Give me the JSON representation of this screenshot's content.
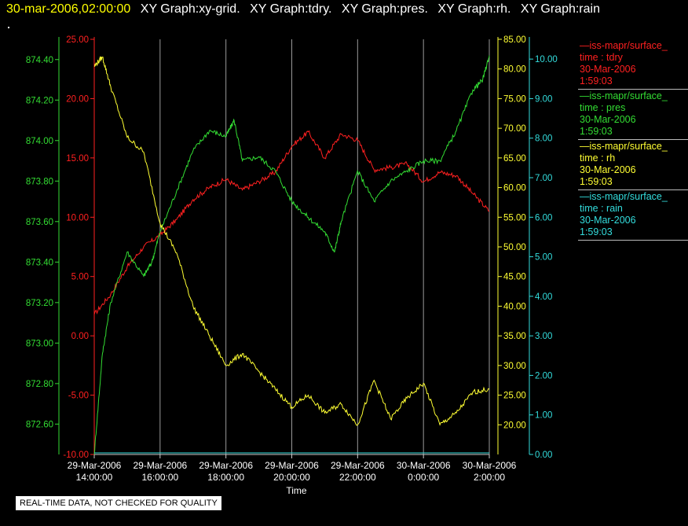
{
  "header": {
    "timestamp": "30-mar-2006,02:00:00",
    "titles": [
      "XY Graph:xy-grid.",
      "XY Graph:tdry.",
      "XY Graph:pres.",
      "XY Graph:rh.",
      "XY Graph:rain"
    ],
    "dot": "."
  },
  "legend": [
    {
      "name": "—iss-mapr/surface_",
      "var": "time : tdry",
      "date": "30-Mar-2006",
      "time": "1:59:03",
      "color": "#ff2020"
    },
    {
      "name": "—iss-mapr/surface_",
      "var": "time : pres",
      "date": "30-Mar-2006",
      "time": "1:59:03",
      "color": "#33dd33"
    },
    {
      "name": "—iss-mapr/surface_",
      "var": "time : rh",
      "date": "30-Mar-2006",
      "time": "1:59:03",
      "color": "#ffff33"
    },
    {
      "name": "—iss-mapr/surface_",
      "var": "time : rain",
      "date": "30-Mar-2006",
      "time": "1:59:03",
      "color": "#33dddd"
    }
  ],
  "footer_note": "REAL-TIME DATA, NOT CHECKED FOR QUALITY",
  "chart_data": {
    "type": "line",
    "xlabel": "Time",
    "x_ticks": [
      {
        "date": "29-Mar-2006",
        "time": "14:00:00"
      },
      {
        "date": "29-Mar-2006",
        "time": "16:00:00"
      },
      {
        "date": "29-Mar-2006",
        "time": "18:00:00"
      },
      {
        "date": "29-Mar-2006",
        "time": "20:00:00"
      },
      {
        "date": "29-Mar-2006",
        "time": "22:00:00"
      },
      {
        "date": "30-Mar-2006",
        "time": "0:00:00"
      },
      {
        "date": "30-Mar-2006",
        "time": "2:00:00"
      }
    ],
    "x_tick_hours": [
      14,
      16,
      18,
      20,
      22,
      24,
      26
    ],
    "xlim_hours": [
      14,
      26
    ],
    "vertical_grid": true,
    "axes": {
      "tdry": {
        "color": "#ff2020",
        "side": "left-inner",
        "range": [
          -10,
          25
        ],
        "ticks": [
          "-10.00",
          "-5.00",
          "0.00",
          "5.00",
          "10.00",
          "15.00",
          "20.00",
          "25.00"
        ]
      },
      "pres": {
        "color": "#33dd33",
        "side": "left-outer",
        "range": [
          872.45,
          874.5
        ],
        "ticks": [
          "872.60",
          "872.80",
          "873.00",
          "873.20",
          "873.40",
          "873.60",
          "873.80",
          "874.00",
          "874.20",
          "874.40"
        ]
      },
      "rh": {
        "color": "#ffff33",
        "side": "right-inner",
        "range": [
          15,
          85
        ],
        "ticks": [
          "20.00",
          "25.00",
          "30.00",
          "35.00",
          "40.00",
          "45.00",
          "50.00",
          "55.00",
          "60.00",
          "65.00",
          "70.00",
          "75.00",
          "80.00",
          "85.00"
        ]
      },
      "rain": {
        "color": "#33dddd",
        "side": "right-outer",
        "range": [
          0,
          10.5
        ],
        "ticks": [
          "0.00",
          "1.00",
          "2.00",
          "3.00",
          "4.00",
          "5.00",
          "6.00",
          "7.00",
          "8.00",
          "9.00",
          "10.00"
        ]
      }
    },
    "series": [
      {
        "name": "time : tdry",
        "axis": "tdry",
        "color": "#ff2020",
        "x": [
          14.0,
          14.5,
          15.0,
          15.5,
          16.0,
          16.5,
          17.0,
          17.5,
          18.0,
          18.5,
          19.0,
          19.5,
          20.0,
          20.5,
          21.0,
          21.5,
          22.0,
          22.5,
          23.0,
          23.5,
          24.0,
          24.5,
          25.0,
          25.5,
          26.0
        ],
        "values": [
          1.8,
          3.5,
          5.8,
          7.5,
          8.5,
          9.8,
          11.5,
          12.5,
          13.2,
          12.3,
          13.0,
          13.8,
          16.0,
          17.2,
          15.0,
          17.0,
          16.5,
          14.0,
          14.2,
          14.5,
          13.0,
          13.8,
          13.5,
          12.0,
          10.5
        ]
      },
      {
        "name": "time : pres",
        "axis": "pres",
        "color": "#33dd33",
        "x": [
          14.0,
          14.25,
          14.5,
          15.0,
          15.5,
          15.75,
          16.0,
          16.5,
          17.0,
          17.5,
          18.0,
          18.25,
          18.5,
          19.0,
          19.5,
          20.0,
          20.5,
          21.0,
          21.3,
          21.5,
          22.0,
          22.5,
          23.0,
          23.5,
          24.0,
          24.5,
          25.0,
          25.5,
          25.8,
          26.0
        ],
        "values": [
          872.45,
          872.95,
          873.2,
          873.45,
          873.33,
          873.4,
          873.55,
          873.75,
          873.95,
          874.05,
          874.02,
          874.1,
          873.9,
          873.92,
          873.85,
          873.7,
          873.62,
          873.55,
          873.45,
          873.6,
          873.85,
          873.7,
          873.8,
          873.85,
          873.9,
          873.9,
          874.05,
          874.25,
          874.3,
          874.42
        ]
      },
      {
        "name": "time : rh",
        "axis": "rh",
        "color": "#ffff33",
        "x": [
          14.0,
          14.25,
          14.5,
          15.0,
          15.5,
          16.0,
          16.5,
          17.0,
          17.5,
          18.0,
          18.5,
          19.0,
          19.5,
          20.0,
          20.5,
          21.0,
          21.5,
          22.0,
          22.5,
          23.0,
          23.5,
          24.0,
          24.5,
          25.0,
          25.5,
          26.0
        ],
        "values": [
          80.5,
          82.0,
          77.0,
          68.5,
          66.0,
          54.0,
          49.0,
          40.0,
          35.0,
          30.0,
          32.0,
          29.0,
          26.0,
          23.0,
          25.0,
          22.0,
          23.5,
          20.0,
          27.5,
          21.0,
          24.5,
          27.0,
          20.0,
          22.0,
          25.5,
          26.0
        ]
      },
      {
        "name": "time : rain",
        "axis": "rain",
        "color": "#33dddd",
        "x": [
          14.0,
          26.0
        ],
        "values": [
          0.0,
          0.0
        ]
      }
    ]
  }
}
